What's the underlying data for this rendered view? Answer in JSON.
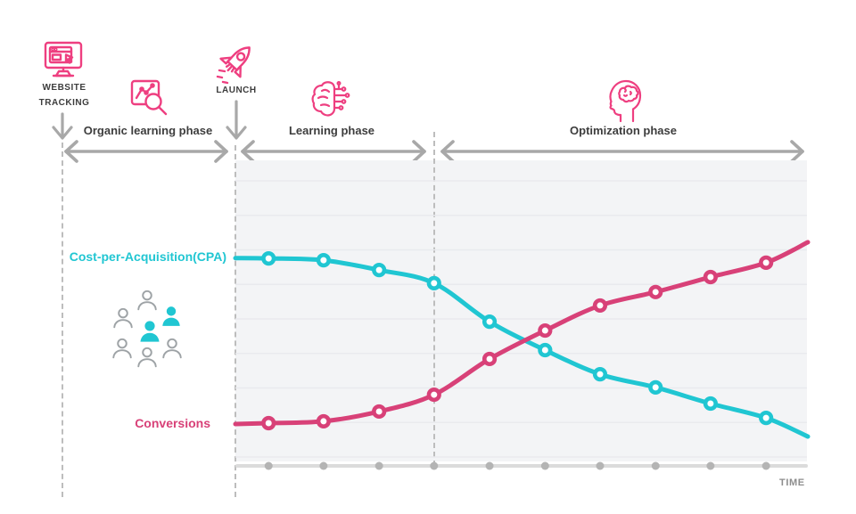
{
  "colors": {
    "icon_pink": "#ee3f80",
    "pink_curve": "#d84178",
    "teal": "#20c6d2",
    "gray_arrow": "#a8a8a8",
    "gray_dash": "#bdbdbd",
    "gray_text": "#3d3d3d",
    "plot_bg": "#f3f4f6",
    "gridline": "#e9eaee",
    "axis_gray": "#dbdbdb",
    "dot_gray": "#b4b4b4",
    "people_gray": "#9ea3a6",
    "time_gray": "#8d8d8d"
  },
  "milestones": {
    "website_tracking": {
      "line1": "WEBSITE",
      "line2": "TRACKING",
      "icon": "monitor-icon"
    },
    "launch": {
      "label": "LAUNCH",
      "icon": "rocket-icon"
    }
  },
  "phases": [
    {
      "label": "Organic learning phase",
      "icon": "analytics-magnifier-icon"
    },
    {
      "label": "Learning phase",
      "icon": "ai-brain-icon"
    },
    {
      "label": "Optimization phase",
      "icon": "head-brain-icon"
    }
  ],
  "audience": {
    "icon": "people-group",
    "total_people": 7,
    "highlighted_people": 2
  },
  "chart_data": {
    "type": "line",
    "title": "",
    "xlabel": "TIME",
    "ylabel": "",
    "ylim": [
      0,
      100
    ],
    "grid": true,
    "gridline_count": 9,
    "legend_position": "labels-left-of-curves",
    "x_pct": [
      0,
      5.8,
      15.4,
      25.1,
      34.7,
      44.4,
      54.1,
      63.7,
      73.4,
      83.0,
      92.7,
      100
    ],
    "marker_indices": [
      1,
      2,
      3,
      4,
      5,
      6,
      7,
      8,
      9,
      10
    ],
    "x_dots_pct": [
      5.8,
      15.4,
      25.1,
      34.7,
      44.4,
      54.1,
      63.7,
      73.4,
      83.0,
      92.7
    ],
    "series": [
      {
        "name": "Cost-per-Acquisition(CPA)",
        "color": "teal",
        "values": [
          68,
          67.9,
          67.3,
          64.1,
          59.8,
          47.2,
          37.9,
          30.0,
          25.7,
          20.4,
          15.7,
          9.6
        ]
      },
      {
        "name": "Conversions",
        "color": "pink_curve",
        "values": [
          13.7,
          14.0,
          14.6,
          17.8,
          23.3,
          35.0,
          44.3,
          52.5,
          56.9,
          61.8,
          66.5,
          73.2
        ]
      }
    ]
  }
}
